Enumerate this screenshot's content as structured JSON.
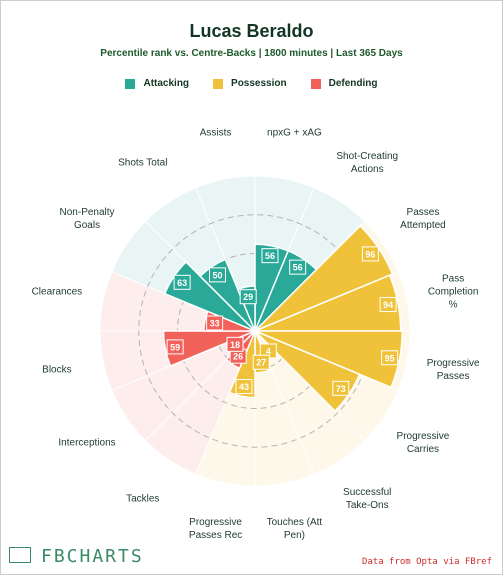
{
  "chart_data": {
    "type": "pizza",
    "title": "Lucas Beraldo",
    "subtitle": "Percentile rank vs. Centre-Backs | 1800 minutes | Last 365 Days",
    "categories": [
      "npxG + xAG",
      "Shot-Creating\nActions",
      "Passes\nAttempted",
      "Pass\nCompletion %",
      "Progressive\nPasses",
      "Progressive\nCarries",
      "Successful\nTake-Ons",
      "Touches (Att\nPen)",
      "Progressive\nPasses Rec",
      "Tackles",
      "Interceptions",
      "Blocks",
      "Clearances",
      "Non-Penalty\nGoals",
      "Shots Total",
      "Assists"
    ],
    "series": [
      {
        "name": "Attacking",
        "color": "#2aa898",
        "values": [
          56,
          56,
          null,
          null,
          null,
          null,
          null,
          null,
          null,
          null,
          null,
          null,
          null,
          63,
          50,
          29
        ]
      },
      {
        "name": "Possession",
        "color": "#f0c23a",
        "values": [
          null,
          null,
          96,
          94,
          95,
          73,
          4,
          27,
          43,
          null,
          null,
          null,
          null,
          null,
          null,
          null
        ]
      },
      {
        "name": "Defending",
        "color": "#f0625a",
        "values": [
          null,
          null,
          null,
          null,
          null,
          null,
          null,
          null,
          null,
          26,
          18,
          59,
          33,
          null,
          null,
          null
        ]
      }
    ],
    "rlim": [
      0,
      100
    ],
    "rticks": [
      25,
      50,
      75
    ]
  },
  "footer": {
    "brand": "FBCHARTS",
    "source": "Data from Opta via FBref"
  }
}
